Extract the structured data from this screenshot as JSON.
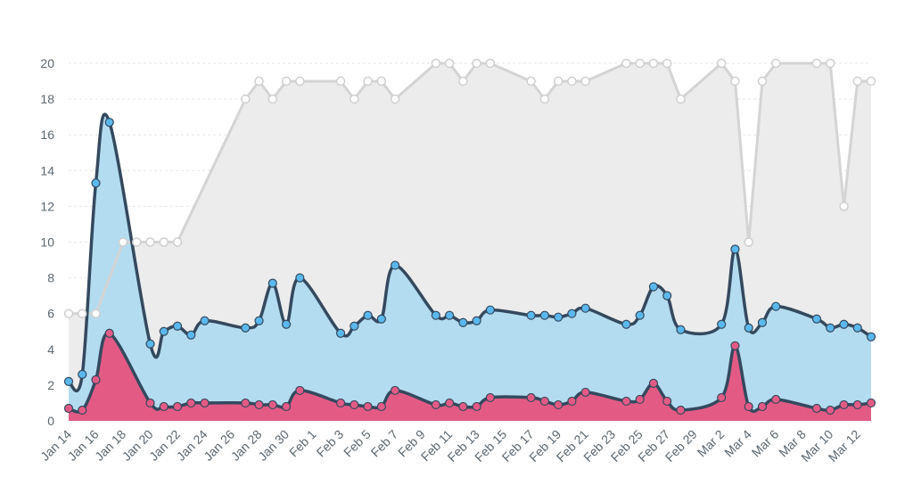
{
  "chart_data": {
    "type": "area",
    "grid": true,
    "legend": "none",
    "ylim": [
      0,
      20
    ],
    "yticks": [
      0,
      2,
      4,
      6,
      8,
      10,
      12,
      14,
      16,
      18,
      20
    ],
    "xlabels": [
      "Jan 14",
      "Jan 16",
      "Jan 18",
      "Jan 20",
      "Jan 22",
      "Jan 24",
      "Jan 26",
      "Jan 28",
      "Jan 30",
      "Feb 1",
      "Feb 3",
      "Feb 5",
      "Feb 7",
      "Feb 9",
      "Feb 11",
      "Feb 13",
      "Feb 15",
      "Feb 17",
      "Feb 19",
      "Feb 21",
      "Feb 23",
      "Feb 25",
      "Feb 27",
      "Feb 29",
      "Mar 2",
      "Mar 4",
      "Mar 6",
      "Mar 8",
      "Mar 10",
      "Mar 12"
    ],
    "series": [
      {
        "key": "gray",
        "color": "#d4d4d4",
        "fill": "#ececec",
        "marker_fill": "#ffffff",
        "points": [
          [
            0,
            6
          ],
          [
            1,
            6
          ],
          [
            2,
            6
          ],
          [
            4,
            10
          ],
          [
            5,
            10
          ],
          [
            6,
            10
          ],
          [
            7,
            10
          ],
          [
            8,
            10
          ],
          [
            13,
            18
          ],
          [
            14,
            19
          ],
          [
            15,
            18
          ],
          [
            16,
            19
          ],
          [
            17,
            19
          ],
          [
            20,
            19
          ],
          [
            21,
            18
          ],
          [
            22,
            19
          ],
          [
            23,
            19
          ],
          [
            24,
            18
          ],
          [
            27,
            20
          ],
          [
            28,
            20
          ],
          [
            29,
            19
          ],
          [
            30,
            20
          ],
          [
            31,
            20
          ],
          [
            34,
            19
          ],
          [
            35,
            18
          ],
          [
            36,
            19
          ],
          [
            37,
            19
          ],
          [
            38,
            19
          ],
          [
            41,
            20
          ],
          [
            42,
            20
          ],
          [
            43,
            20
          ],
          [
            44,
            20
          ],
          [
            45,
            18
          ],
          [
            48,
            20
          ],
          [
            49,
            19
          ],
          [
            50,
            10
          ],
          [
            51,
            19
          ],
          [
            52,
            20
          ],
          [
            55,
            20
          ],
          [
            56,
            20
          ],
          [
            57,
            12
          ],
          [
            58,
            19
          ],
          [
            59,
            19
          ]
        ]
      },
      {
        "key": "blue",
        "color": "#34495e",
        "fill": "#b3dcf0",
        "marker_fill": "#5bb8ec",
        "points": [
          [
            0,
            2.2
          ],
          [
            1,
            2.6
          ],
          [
            2,
            13.3
          ],
          [
            3,
            16.7
          ],
          [
            6,
            4.3
          ],
          [
            7,
            5
          ],
          [
            8,
            5.3
          ],
          [
            9,
            4.8
          ],
          [
            10,
            5.6
          ],
          [
            13,
            5.2
          ],
          [
            14,
            5.6
          ],
          [
            15,
            7.7
          ],
          [
            16,
            5.4
          ],
          [
            17,
            8
          ],
          [
            20,
            4.9
          ],
          [
            21,
            5.3
          ],
          [
            22,
            5.9
          ],
          [
            23,
            5.7
          ],
          [
            24,
            8.7
          ],
          [
            27,
            5.9
          ],
          [
            28,
            5.9
          ],
          [
            29,
            5.5
          ],
          [
            30,
            5.6
          ],
          [
            31,
            6.2
          ],
          [
            34,
            5.9
          ],
          [
            35,
            5.9
          ],
          [
            36,
            5.8
          ],
          [
            37,
            6
          ],
          [
            38,
            6.3
          ],
          [
            41,
            5.4
          ],
          [
            42,
            5.9
          ],
          [
            43,
            7.5
          ],
          [
            44,
            7
          ],
          [
            45,
            5.1
          ],
          [
            48,
            5.4
          ],
          [
            49,
            9.6
          ],
          [
            50,
            5.2
          ],
          [
            51,
            5.5
          ],
          [
            52,
            6.4
          ],
          [
            55,
            5.7
          ],
          [
            56,
            5.2
          ],
          [
            57,
            5.4
          ],
          [
            58,
            5.2
          ],
          [
            59,
            4.7
          ]
        ]
      },
      {
        "key": "red",
        "color": "#34495e",
        "fill": "#e35b85",
        "marker_fill": "#e35b85",
        "points": [
          [
            0,
            0.7
          ],
          [
            1,
            0.6
          ],
          [
            2,
            2.3
          ],
          [
            3,
            4.9
          ],
          [
            6,
            1
          ],
          [
            7,
            0.8
          ],
          [
            8,
            0.8
          ],
          [
            9,
            1
          ],
          [
            10,
            1
          ],
          [
            13,
            1
          ],
          [
            14,
            0.9
          ],
          [
            15,
            0.9
          ],
          [
            16,
            0.8
          ],
          [
            17,
            1.7
          ],
          [
            20,
            1
          ],
          [
            21,
            0.9
          ],
          [
            22,
            0.8
          ],
          [
            23,
            0.8
          ],
          [
            24,
            1.7
          ],
          [
            27,
            0.9
          ],
          [
            28,
            1
          ],
          [
            29,
            0.8
          ],
          [
            30,
            0.8
          ],
          [
            31,
            1.3
          ],
          [
            34,
            1.3
          ],
          [
            35,
            1.1
          ],
          [
            36,
            0.9
          ],
          [
            37,
            1.1
          ],
          [
            38,
            1.6
          ],
          [
            41,
            1.1
          ],
          [
            42,
            1.2
          ],
          [
            43,
            2.1
          ],
          [
            44,
            1.1
          ],
          [
            45,
            0.6
          ],
          [
            48,
            1.3
          ],
          [
            49,
            4.2
          ],
          [
            50,
            0.8
          ],
          [
            51,
            0.8
          ],
          [
            52,
            1.2
          ],
          [
            55,
            0.7
          ],
          [
            56,
            0.6
          ],
          [
            57,
            0.9
          ],
          [
            58,
            0.9
          ],
          [
            59,
            1
          ]
        ]
      }
    ]
  }
}
